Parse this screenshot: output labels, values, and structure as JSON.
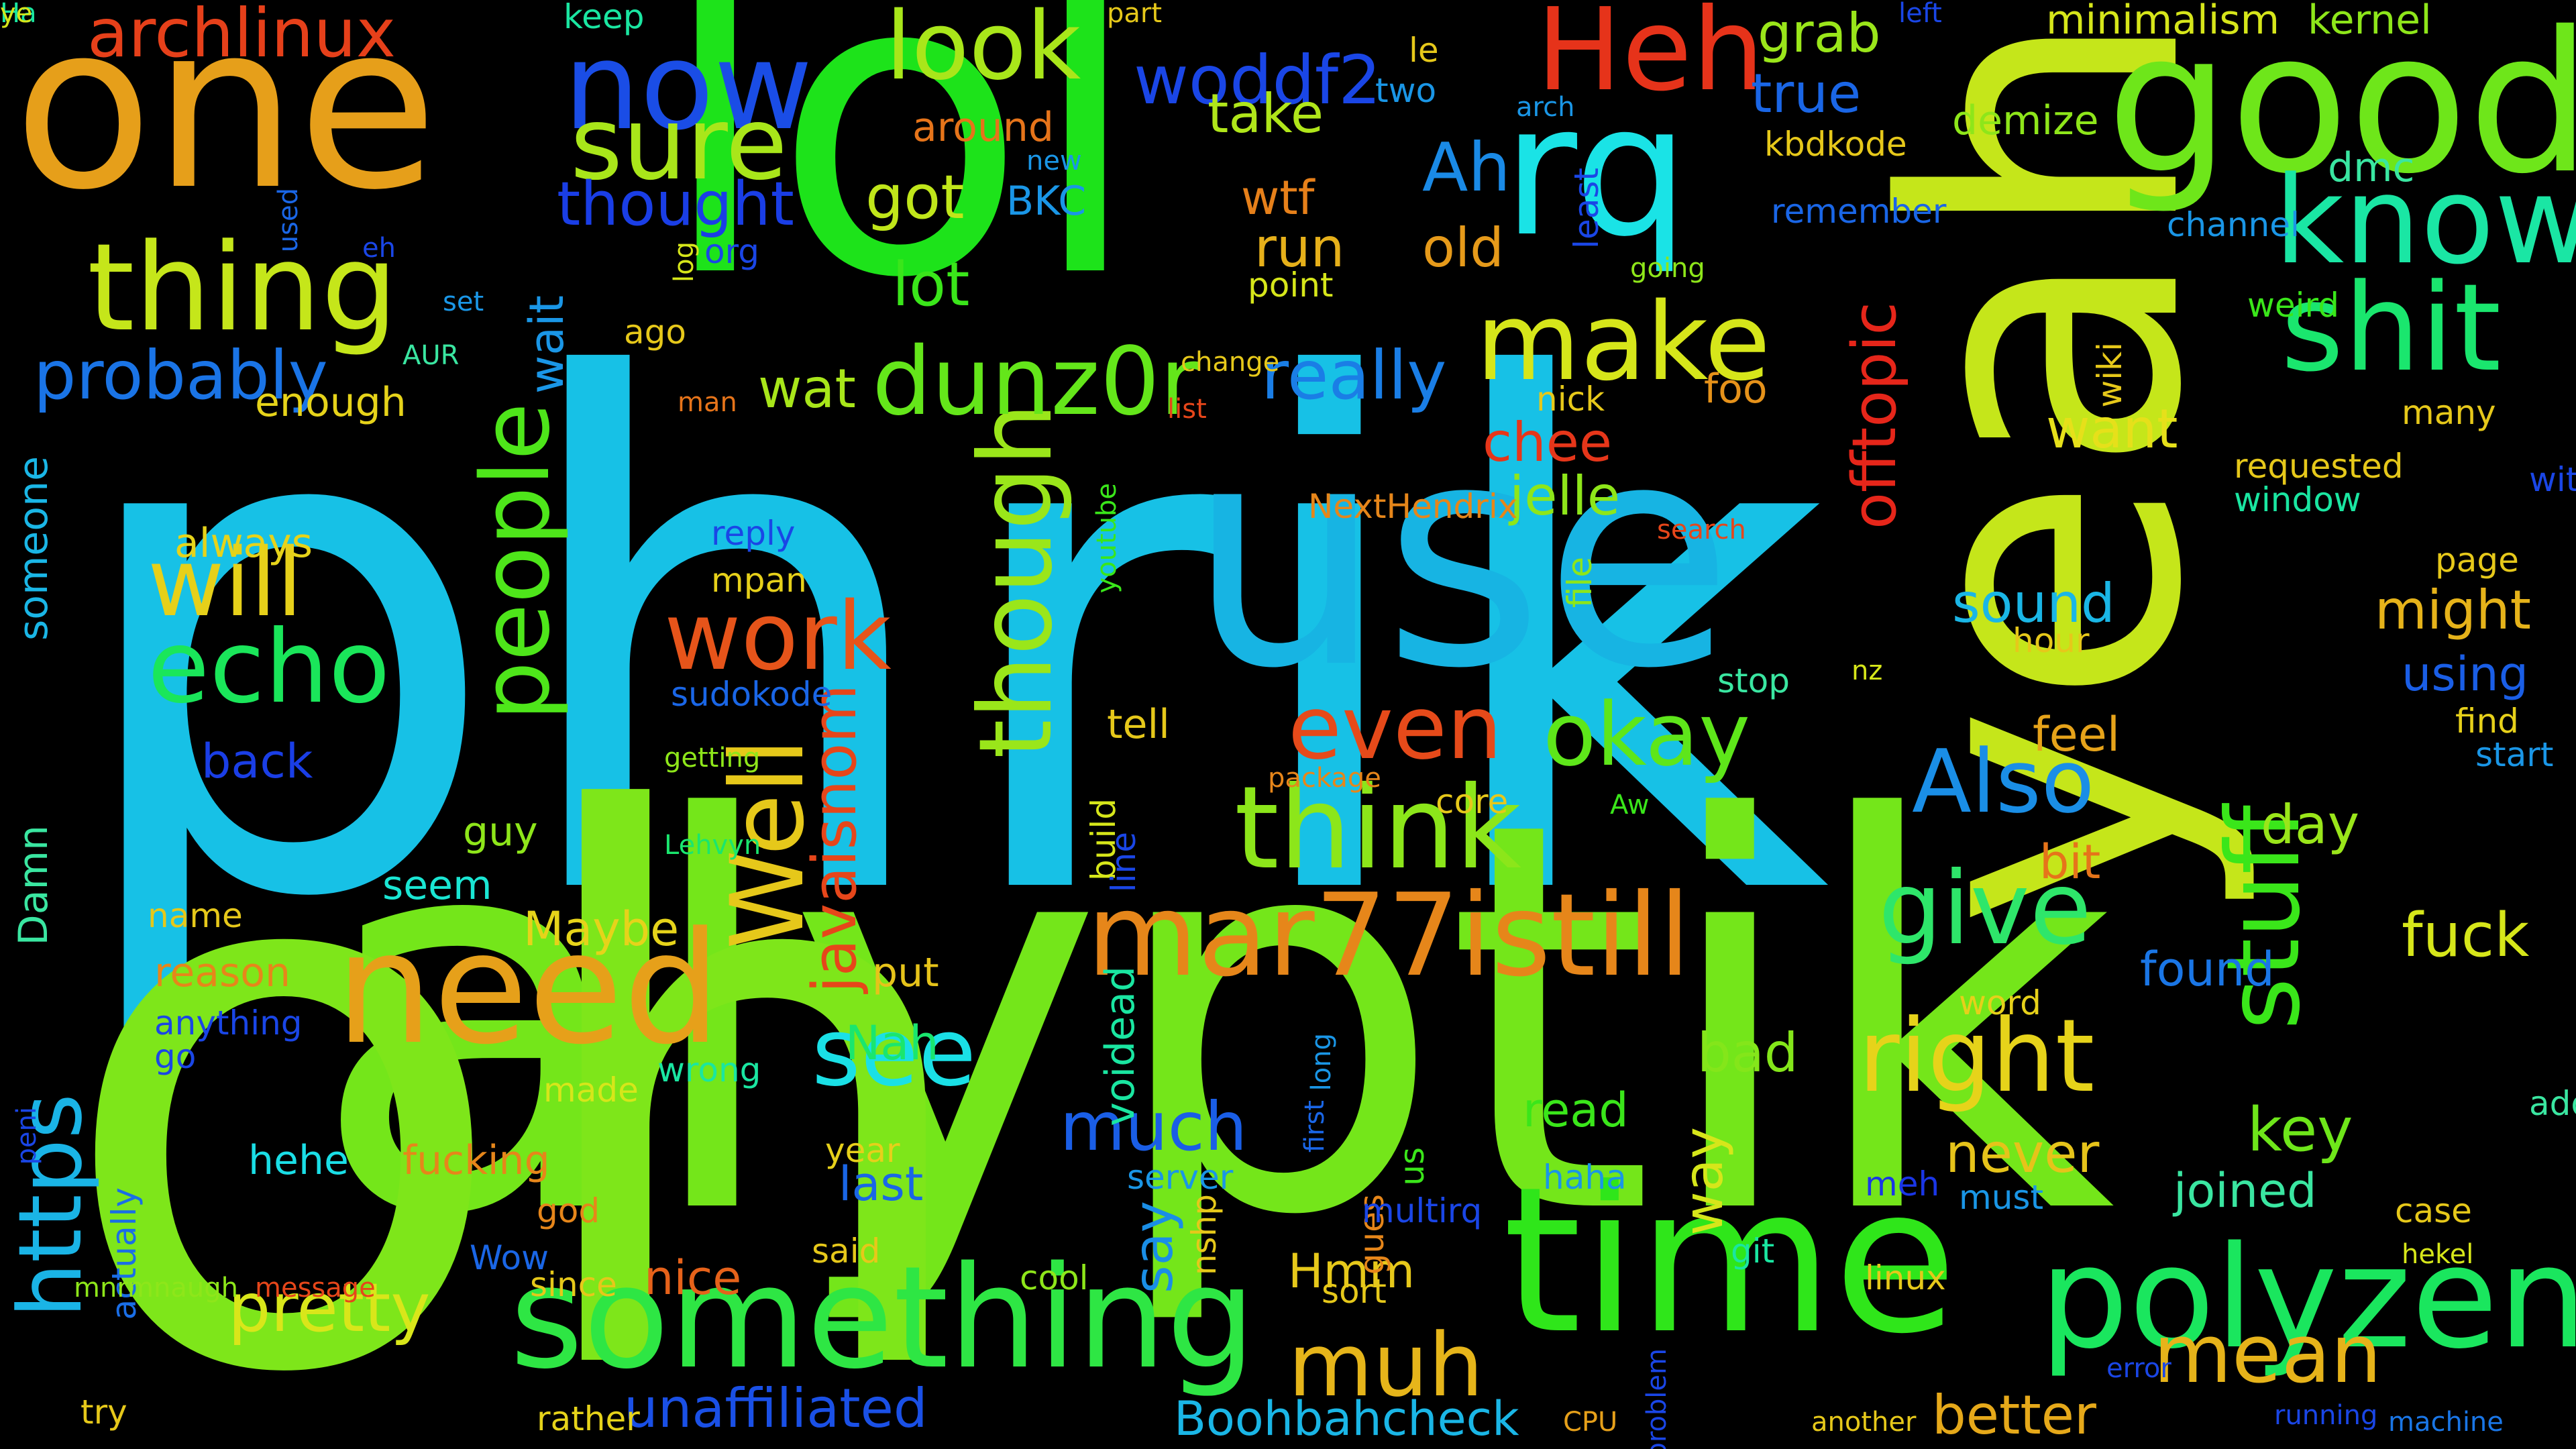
{
  "palette": {
    "background": "#000000"
  },
  "words": [
    {
      "text": "phrik",
      "color": "#17c1e6"
    },
    {
      "text": "alyptik",
      "color": "#74e61a"
    },
    {
      "text": "lol",
      "color": "#1de31a"
    },
    {
      "text": "oh",
      "color": "#7ee61a"
    },
    {
      "text": "use",
      "color": "#17b4e3"
    },
    {
      "text": "yeah",
      "color": "#c5e61a"
    },
    {
      "text": "one",
      "color": "#e69f1a"
    },
    {
      "text": "good",
      "color": "#6ee61a"
    },
    {
      "text": "time",
      "color": "#2fe61a"
    },
    {
      "text": "rq",
      "color": "#1ae3e6"
    },
    {
      "text": "need",
      "color": "#e6a01a"
    },
    {
      "text": "something",
      "color": "#2ee644"
    },
    {
      "text": "polyzen",
      "color": "#1ae65e"
    },
    {
      "text": "thing",
      "color": "#c5e61a"
    },
    {
      "text": "know",
      "color": "#1ae6a4"
    },
    {
      "text": "shit",
      "color": "#1ae66e"
    },
    {
      "text": "mar77istill",
      "color": "#e6861a"
    },
    {
      "text": "think",
      "color": "#8ce61a"
    },
    {
      "text": "now",
      "color": "#1a4de6"
    },
    {
      "text": "Heh",
      "color": "#e6331a"
    },
    {
      "text": "look",
      "color": "#a9e61a"
    },
    {
      "text": "sure",
      "color": "#a9e61a"
    },
    {
      "text": "make",
      "color": "#d6e61a"
    },
    {
      "text": "people",
      "color": "#4ee61a"
    },
    {
      "text": "though",
      "color": "#9ae61a"
    },
    {
      "text": "Well",
      "color": "#e6c81a"
    },
    {
      "text": "echo",
      "color": "#1ae65a"
    },
    {
      "text": "will",
      "color": "#e6d01a"
    },
    {
      "text": "dunz0r",
      "color": "#64e61a"
    },
    {
      "text": "right",
      "color": "#e6d31a"
    },
    {
      "text": "give",
      "color": "#2ee66a"
    },
    {
      "text": "see",
      "color": "#1ae0e6"
    },
    {
      "text": "muh",
      "color": "#e6b51a"
    },
    {
      "text": "mean",
      "color": "#e6b31a"
    },
    {
      "text": "stuff",
      "color": "#3ae61a"
    },
    {
      "text": "okay",
      "color": "#5ee61a"
    },
    {
      "text": "work",
      "color": "#e6541a"
    },
    {
      "text": "even",
      "color": "#e64a1a"
    },
    {
      "text": "Also",
      "color": "#1a8ee6"
    },
    {
      "text": "https",
      "color": "#1ab4e6"
    },
    {
      "text": "pretty",
      "color": "#d9e61a"
    },
    {
      "text": "much",
      "color": "#1a5ee6"
    },
    {
      "text": "archlinux",
      "color": "#e6401a"
    },
    {
      "text": "probably",
      "color": "#1a74e6"
    },
    {
      "text": "woddf2",
      "color": "#1a46e6"
    },
    {
      "text": "thought",
      "color": "#1a3ee6"
    },
    {
      "text": "javaisnom",
      "color": "#e6461a"
    },
    {
      "text": "offtopic",
      "color": "#e6261a"
    },
    {
      "text": "unaffiliated",
      "color": "#1a50e6"
    },
    {
      "text": "Boohbahcheck",
      "color": "#1ab6e6"
    },
    {
      "text": "really",
      "color": "#1a7ee6"
    },
    {
      "text": "got",
      "color": "#c0e61a"
    },
    {
      "text": "lot",
      "color": "#3ae61a"
    },
    {
      "text": "wtf",
      "color": "#e6801a"
    },
    {
      "text": "run",
      "color": "#e6b01a"
    },
    {
      "text": "take",
      "color": "#b0e61a"
    },
    {
      "text": "grab",
      "color": "#9ae61a"
    },
    {
      "text": "true",
      "color": "#1a66e6"
    },
    {
      "text": "wat",
      "color": "#a8e61a"
    },
    {
      "text": "Ah",
      "color": "#1a8ae6"
    },
    {
      "text": "old",
      "color": "#e69a1a"
    },
    {
      "text": "chee",
      "color": "#e6361a"
    },
    {
      "text": "jelle",
      "color": "#8ee61a"
    },
    {
      "text": "foo",
      "color": "#e6921a"
    },
    {
      "text": "want",
      "color": "#e6e01a"
    },
    {
      "text": "might",
      "color": "#e6b31a"
    },
    {
      "text": "using",
      "color": "#1a5ee6"
    },
    {
      "text": "sound",
      "color": "#1ab6e6"
    },
    {
      "text": "feel",
      "color": "#e6a31a"
    },
    {
      "text": "bit",
      "color": "#e6741a"
    },
    {
      "text": "day",
      "color": "#9ae61a"
    },
    {
      "text": "fuck",
      "color": "#d6e61a"
    },
    {
      "text": "found",
      "color": "#1a76e6"
    },
    {
      "text": "key",
      "color": "#6ee61a"
    },
    {
      "text": "joined",
      "color": "#3ae6a1"
    },
    {
      "text": "never",
      "color": "#e6c31a"
    },
    {
      "text": "better",
      "color": "#e6a91a"
    },
    {
      "text": "bad",
      "color": "#84e61a"
    },
    {
      "text": "way",
      "color": "#d6e61a"
    },
    {
      "text": "say",
      "color": "#1a8ee6"
    },
    {
      "text": "nice",
      "color": "#e6621a"
    },
    {
      "text": "Hmm",
      "color": "#e6c81a"
    },
    {
      "text": "last",
      "color": "#1a66e6"
    },
    {
      "text": "Nah",
      "color": "#1ae66e"
    },
    {
      "text": "put",
      "color": "#e6c31a"
    },
    {
      "text": "Maybe",
      "color": "#e6d31a"
    },
    {
      "text": "seem",
      "color": "#1ae6d3"
    },
    {
      "text": "guy",
      "color": "#8ee61a"
    },
    {
      "text": "back",
      "color": "#1a3ee6"
    },
    {
      "text": "always",
      "color": "#e6d31a"
    },
    {
      "text": "enough",
      "color": "#e6d31a"
    },
    {
      "text": "wait",
      "color": "#1a96e6"
    },
    {
      "text": "someone",
      "color": "#1ab6e6"
    },
    {
      "text": "actually",
      "color": "#1a6ee6"
    },
    {
      "text": "hehe",
      "color": "#1adee6"
    },
    {
      "text": "fucking",
      "color": "#e6861a"
    },
    {
      "text": "message",
      "color": "#e6461a"
    },
    {
      "text": "since",
      "color": "#e6c81a"
    },
    {
      "text": "Wow",
      "color": "#1a66e6"
    },
    {
      "text": "cool",
      "color": "#8ee61a"
    },
    {
      "text": "git",
      "color": "#1ae6a1"
    },
    {
      "text": "linux",
      "color": "#e6c81a"
    },
    {
      "text": "hekel",
      "color": "#d6e61a"
    },
    {
      "text": "machine",
      "color": "#1a76e6"
    },
    {
      "text": "running",
      "color": "#1a46e6"
    },
    {
      "text": "case",
      "color": "#e6c81a"
    },
    {
      "text": "add",
      "color": "#3ae6a1"
    },
    {
      "text": "must",
      "color": "#1a96e6"
    },
    {
      "text": "meh",
      "color": "#1a36e6"
    },
    {
      "text": "word",
      "color": "#e6d01a"
    },
    {
      "text": "error",
      "color": "#1a46e6"
    },
    {
      "text": "another",
      "color": "#e6c81a"
    },
    {
      "text": "CPU",
      "color": "#e6a01a"
    },
    {
      "text": "rather",
      "color": "#e6d31a"
    },
    {
      "text": "try",
      "color": "#e6c81a"
    },
    {
      "text": "minimalism",
      "color": "#d6e61a"
    },
    {
      "text": "kernel",
      "color": "#8ee61a"
    },
    {
      "text": "demize",
      "color": "#8ee61a"
    },
    {
      "text": "kbdkode",
      "color": "#e6c81a"
    },
    {
      "text": "remember",
      "color": "#1a66e6"
    },
    {
      "text": "dmc",
      "color": "#3ae6a1"
    },
    {
      "text": "channel",
      "color": "#1a96e6"
    },
    {
      "text": "weird",
      "color": "#3ae61a"
    },
    {
      "text": "nick",
      "color": "#e6c81a"
    },
    {
      "text": "requested",
      "color": "#e6c81a"
    },
    {
      "text": "window",
      "color": "#1ae6a1"
    },
    {
      "text": "many",
      "color": "#e6c81a"
    },
    {
      "text": "without",
      "color": "#1a46e6"
    },
    {
      "text": "page",
      "color": "#e6c81a"
    },
    {
      "text": "find",
      "color": "#e6d01a"
    },
    {
      "text": "start",
      "color": "#1a96e6"
    },
    {
      "text": "le",
      "color": "#e6c81a"
    },
    {
      "text": "two",
      "color": "#1a96e6"
    },
    {
      "text": "arch",
      "color": "#1a96e6"
    },
    {
      "text": "left",
      "color": "#1a46e6"
    },
    {
      "text": "part",
      "color": "#e6c81a"
    },
    {
      "text": "keep",
      "color": "#1ae6a1"
    },
    {
      "text": "around",
      "color": "#e6741a"
    },
    {
      "text": "new",
      "color": "#1a96e6"
    },
    {
      "text": "BKC",
      "color": "#1a96e6"
    },
    {
      "text": "point",
      "color": "#d6e61a"
    },
    {
      "text": "least",
      "color": "#1a46e6"
    },
    {
      "text": "going",
      "color": "#8ee61a"
    },
    {
      "text": "used",
      "color": "#1a66e6"
    },
    {
      "text": "eh",
      "color": "#1a46e6"
    },
    {
      "text": "set",
      "color": "#1a96e6"
    },
    {
      "text": "AUR",
      "color": "#3ae6a1"
    },
    {
      "text": "org",
      "color": "#1a46e6"
    },
    {
      "text": "ago",
      "color": "#e6c81a"
    },
    {
      "text": "log",
      "color": "#d6e61a"
    },
    {
      "text": "man",
      "color": "#e6741a"
    },
    {
      "text": "change",
      "color": "#e6c81a"
    },
    {
      "text": "list",
      "color": "#e6461a"
    },
    {
      "text": "wiki",
      "color": "#e6c81a"
    },
    {
      "text": "search",
      "color": "#e6461a"
    },
    {
      "text": "NextHendrix",
      "color": "#e6861a"
    },
    {
      "text": "reply",
      "color": "#1a46e6"
    },
    {
      "text": "mpan",
      "color": "#e6d01a"
    },
    {
      "text": "youtube",
      "color": "#3ae61a"
    },
    {
      "text": "file",
      "color": "#8ee61a"
    },
    {
      "text": "sudokode",
      "color": "#1a66e6"
    },
    {
      "text": "getting",
      "color": "#8ee61a"
    },
    {
      "text": "Lehvyn",
      "color": "#1ae66e"
    },
    {
      "text": "stop",
      "color": "#3ae6a1"
    },
    {
      "text": "nz",
      "color": "#d6e61a"
    },
    {
      "text": "hour",
      "color": "#e6c81a"
    },
    {
      "text": "Aw",
      "color": "#3ae61a"
    },
    {
      "text": "package",
      "color": "#e6861a"
    },
    {
      "text": "core",
      "color": "#e6c81a"
    },
    {
      "text": "build",
      "color": "#d6e61a"
    },
    {
      "text": "line",
      "color": "#1a46e6"
    },
    {
      "text": "voidead",
      "color": "#1ae6a1"
    },
    {
      "text": "wrong",
      "color": "#1ae6a1"
    },
    {
      "text": "year",
      "color": "#e6d01a"
    },
    {
      "text": "read",
      "color": "#3ae61a"
    },
    {
      "text": "haha",
      "color": "#1a96e6"
    },
    {
      "text": "gues",
      "color": "#e6861a"
    },
    {
      "text": "us",
      "color": "#3ae61a"
    },
    {
      "text": "multirq",
      "color": "#1a46e6"
    },
    {
      "text": "server",
      "color": "#1a96e6"
    },
    {
      "text": "long",
      "color": "#1a96e6"
    },
    {
      "text": "first",
      "color": "#1a66e6"
    },
    {
      "text": "nshp",
      "color": "#e6c81a"
    },
    {
      "text": "sort",
      "color": "#e6c81a"
    },
    {
      "text": "problem",
      "color": "#1a46e6"
    },
    {
      "text": "name",
      "color": "#e6c81a"
    },
    {
      "text": "reason",
      "color": "#e6861a"
    },
    {
      "text": "anything",
      "color": "#1a46e6"
    },
    {
      "text": "go",
      "color": "#1a46e6"
    },
    {
      "text": "Damn",
      "color": "#3ae6a1"
    },
    {
      "text": "peni",
      "color": "#1a46e6"
    },
    {
      "text": "mnrmnaugh",
      "color": "#8ee61a"
    },
    {
      "text": "made",
      "color": "#d6e61a"
    },
    {
      "text": "god",
      "color": "#e6861a"
    },
    {
      "text": "said",
      "color": "#e6c81a"
    },
    {
      "text": "tell",
      "color": "#e6c81a"
    },
    {
      "text": "Ha",
      "color": "#1ae6a1"
    },
    {
      "text": "ye",
      "color": "#d6e61a"
    }
  ]
}
